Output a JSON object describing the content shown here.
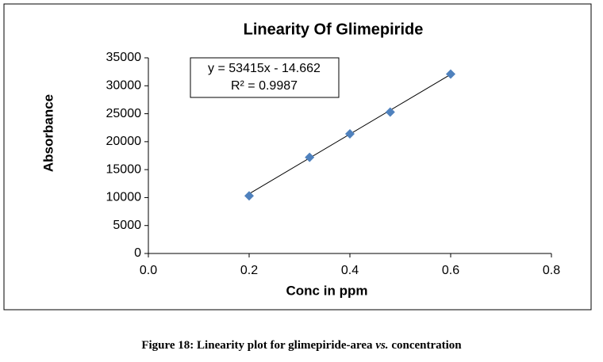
{
  "chart_data": {
    "type": "scatter",
    "title": "Linearity Of Glimepiride",
    "x_label": "Conc in ppm",
    "y_label": "Absorbance",
    "series": [
      {
        "name": "Absorbance",
        "color": "#4f81bd",
        "x": [
          0.2,
          0.32,
          0.4,
          0.48,
          0.6
        ],
        "values": [
          10300,
          17200,
          21400,
          25300,
          32100
        ]
      }
    ],
    "trendline": {
      "slope": 53415,
      "intercept": -14.662,
      "color": "#000000"
    },
    "equation": "y = 53415x - 14.662",
    "r_squared": "R² = 0.9987",
    "xlim": [
      0,
      0.8
    ],
    "xticks": [
      {
        "value": 0,
        "label": "0.0"
      },
      0.2,
      0.4,
      0.6,
      0.8
    ],
    "ylim": [
      0,
      35000
    ],
    "yticks": [
      0,
      5000,
      10000,
      15000,
      20000,
      25000,
      30000,
      35000
    ],
    "grid": false
  },
  "caption": [
    "Figure 18: Linearity plot for glimepiride-area ",
    "vs.",
    " concentration"
  ]
}
